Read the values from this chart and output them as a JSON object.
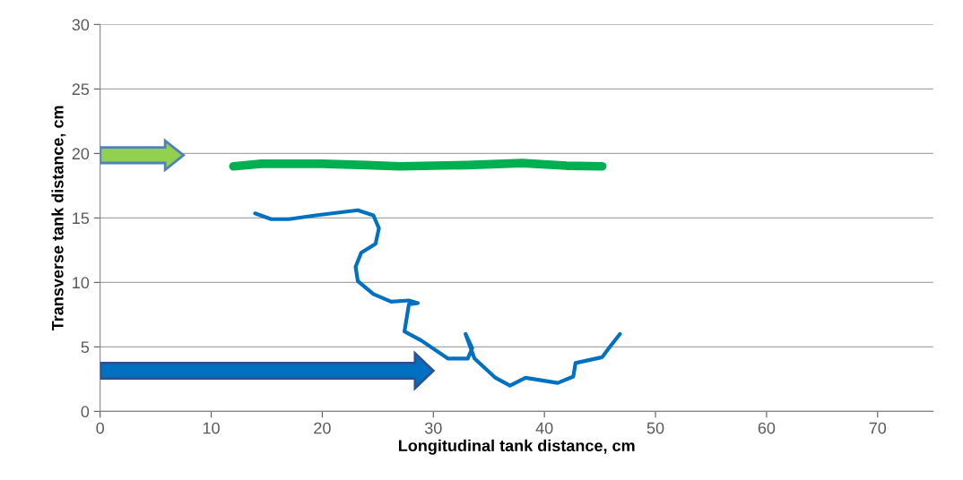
{
  "chart_data": {
    "type": "line",
    "xlabel": "Longitudinal tank distance, cm",
    "ylabel": "Transverse tank distance, cm",
    "xlim": [
      0,
      75
    ],
    "xticks": [
      0,
      10,
      20,
      30,
      40,
      50,
      60,
      70
    ],
    "ylim": [
      0,
      30
    ],
    "yticks": [
      0,
      5,
      10,
      15,
      20,
      25,
      30
    ],
    "grid": "y",
    "marker": "none",
    "line_style": "solid",
    "series": [
      {
        "color": "#00b050",
        "x": [
          12,
          14.5,
          20,
          24,
          27,
          33,
          38,
          42,
          45.2
        ],
        "values": [
          19.0,
          19.2,
          19.2,
          19.1,
          19.0,
          19.1,
          19.25,
          19.05,
          19.0
        ]
      },
      {
        "color": "#0070c0",
        "x": [
          13.95,
          15.4,
          17.0,
          19.4,
          23.2,
          24.6,
          25.1,
          24.8,
          23.5,
          23.0,
          23.2,
          24.6,
          26.2,
          27.8,
          28.6,
          27.8,
          27.4,
          28.9,
          31.3,
          33.1,
          33.5,
          32.9,
          33.7,
          35.6,
          36.9,
          38.3,
          41.2,
          42.6,
          42.8,
          45.2,
          45.8,
          46.8
        ],
        "values": [
          15.35,
          14.9,
          14.9,
          15.2,
          15.6,
          15.2,
          14.2,
          13.0,
          12.3,
          11.2,
          10.1,
          9.1,
          8.5,
          8.6,
          8.4,
          8.3,
          6.2,
          5.5,
          4.1,
          4.1,
          4.9,
          6.0,
          4.1,
          2.6,
          2.0,
          2.6,
          2.2,
          2.7,
          3.75,
          4.2,
          4.9,
          6.0
        ]
      }
    ]
  }
}
